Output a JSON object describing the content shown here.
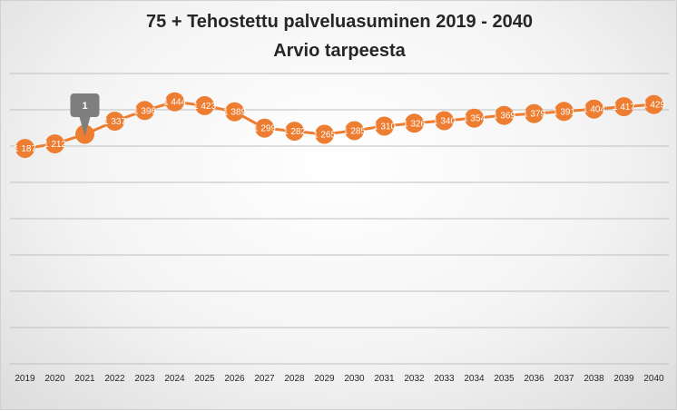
{
  "chart_data": {
    "type": "line",
    "title": "75 + Tehostettu palveluasuminen 2019 - 2040",
    "subtitle": "Arvio tarpeesta",
    "xlabel": "",
    "ylabel": "",
    "categories": [
      "2019",
      "2020",
      "2021",
      "2022",
      "2023",
      "2024",
      "2025",
      "2026",
      "2027",
      "2028",
      "2029",
      "2030",
      "2031",
      "2032",
      "2033",
      "2034",
      "2035",
      "2036",
      "2037",
      "2038",
      "2039",
      "2040"
    ],
    "values": [
      1187,
      1212,
      1265,
      1337,
      1396,
      1444,
      1423,
      1389,
      1299,
      1282,
      1265,
      1285,
      1310,
      1326,
      1340,
      1354,
      1369,
      1379,
      1391,
      1404,
      1417,
      1429
    ],
    "data_labels": [
      "1 187",
      "1 212",
      "",
      "1 337",
      "1 396",
      "1 444",
      "1 423",
      "1 389",
      "1 299",
      "1 282",
      "1 265",
      "1 285",
      "1 310",
      "1 326",
      "1 340",
      "1 354",
      "1 369",
      "1 379",
      "1 391",
      "1 404",
      "1 417",
      "1 429"
    ],
    "callout": {
      "index": 2,
      "label": "1"
    },
    "ylim": [
      0,
      1600
    ],
    "grid": true,
    "line_color": "#ED7D31",
    "marker_color": "#ED7D31",
    "callout_color": "#7F7F7F"
  }
}
